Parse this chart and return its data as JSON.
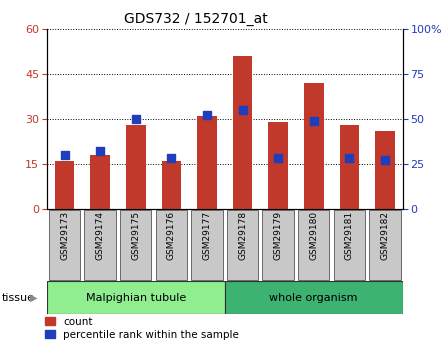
{
  "title": "GDS732 / 152701_at",
  "categories": [
    "GSM29173",
    "GSM29174",
    "GSM29175",
    "GSM29176",
    "GSM29177",
    "GSM29178",
    "GSM29179",
    "GSM29180",
    "GSM29181",
    "GSM29182"
  ],
  "count_values": [
    16,
    18,
    28,
    16,
    31,
    51,
    29,
    42,
    28,
    26
  ],
  "percentile_values": [
    30,
    32,
    50,
    28,
    52,
    55,
    28,
    49,
    28,
    27
  ],
  "ylim_left": [
    0,
    60
  ],
  "ylim_right": [
    0,
    100
  ],
  "yticks_left": [
    0,
    15,
    30,
    45,
    60
  ],
  "yticks_right": [
    0,
    25,
    50,
    75,
    100
  ],
  "bar_color": "#C0392B",
  "dot_color": "#1F3EBB",
  "malpighian_color": "#90EE90",
  "whole_color": "#3CB371",
  "tick_area_color": "#C8C8C8",
  "legend_count_label": "count",
  "legend_pct_label": "percentile rank within the sample",
  "tissue_label": "tissue",
  "n_malpighian": 5,
  "n_whole": 5
}
